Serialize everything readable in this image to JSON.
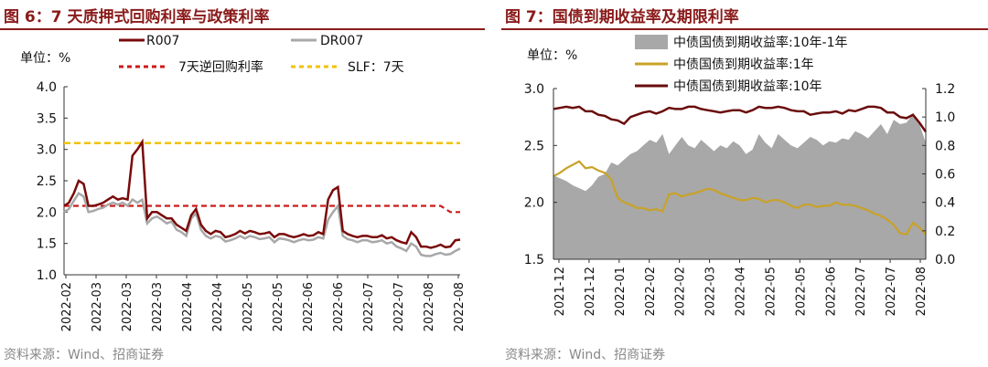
{
  "colors": {
    "title": "#8b1a1a",
    "r007": "#7a0a0a",
    "dr007": "#a8a8a8",
    "reverse_repo": "#cc1a1a",
    "slf": "#f2c200",
    "spread_area": "#a8a8a8",
    "y1": "#c9a227",
    "y10": "#6b0c0c"
  },
  "chart_data": [
    {
      "type": "line",
      "title": "图 6：7 天质押式回购利率与政策利率",
      "unit_label": "单位：%",
      "ylim": [
        1.0,
        4.0
      ],
      "yticks": [
        "4.0",
        "3.5",
        "3.0",
        "2.5",
        "2.0",
        "1.5",
        "1.0"
      ],
      "x_tick_labels": [
        "2022-02",
        "2022-03",
        "2022-03",
        "2022-03",
        "2022-04",
        "2022-04",
        "2022-05",
        "2022-05",
        "2022-06",
        "2022-06",
        "2022-07",
        "2022-07",
        "2022-08",
        "2022-08"
      ],
      "series": [
        {
          "name": "R007",
          "values": [
            2.1,
            2.15,
            2.3,
            2.5,
            2.45,
            2.1,
            2.1,
            2.12,
            2.15,
            2.2,
            2.25,
            2.2,
            2.22,
            2.2,
            2.9,
            3.0,
            3.12,
            1.9,
            2.0,
            2.0,
            1.95,
            1.9,
            1.9,
            1.8,
            1.75,
            1.7,
            1.95,
            2.05,
            1.8,
            1.7,
            1.65,
            1.7,
            1.68,
            1.6,
            1.62,
            1.65,
            1.7,
            1.66,
            1.7,
            1.68,
            1.65,
            1.66,
            1.68,
            1.6,
            1.65,
            1.65,
            1.62,
            1.6,
            1.62,
            1.65,
            1.62,
            1.63,
            1.68,
            1.65,
            2.2,
            2.35,
            2.4,
            1.7,
            1.65,
            1.62,
            1.6,
            1.62,
            1.62,
            1.6,
            1.6,
            1.63,
            1.58,
            1.6,
            1.55,
            1.52,
            1.5,
            1.68,
            1.6,
            1.45,
            1.45,
            1.43,
            1.45,
            1.48,
            1.44,
            1.45,
            1.55,
            1.56
          ]
        },
        {
          "name": "DR007",
          "values": [
            2.0,
            2.05,
            2.18,
            2.3,
            2.25,
            2.0,
            2.02,
            2.05,
            2.07,
            2.12,
            2.15,
            2.12,
            2.15,
            2.1,
            2.2,
            2.15,
            2.2,
            1.82,
            1.9,
            1.93,
            1.88,
            1.82,
            1.85,
            1.72,
            1.68,
            1.62,
            1.9,
            1.98,
            1.72,
            1.62,
            1.58,
            1.62,
            1.6,
            1.53,
            1.55,
            1.58,
            1.62,
            1.58,
            1.62,
            1.6,
            1.57,
            1.58,
            1.6,
            1.52,
            1.58,
            1.57,
            1.55,
            1.52,
            1.55,
            1.57,
            1.55,
            1.56,
            1.6,
            1.58,
            1.88,
            2.0,
            2.1,
            1.62,
            1.57,
            1.55,
            1.52,
            1.55,
            1.55,
            1.52,
            1.53,
            1.55,
            1.5,
            1.52,
            1.45,
            1.42,
            1.38,
            1.5,
            1.45,
            1.32,
            1.3,
            1.3,
            1.33,
            1.35,
            1.32,
            1.33,
            1.38,
            1.42
          ]
        },
        {
          "name": "7天逆回购利率",
          "values": [
            2.1,
            2.1,
            2.1,
            2.1,
            2.1,
            2.1,
            2.1,
            2.1,
            2.1,
            2.1,
            2.1,
            2.1,
            2.1,
            2.1,
            2.1,
            2.1,
            2.1,
            2.1,
            2.1,
            2.1,
            2.1,
            2.1,
            2.1,
            2.1,
            2.1,
            2.1,
            2.1,
            2.1,
            2.1,
            2.1,
            2.1,
            2.1,
            2.1,
            2.1,
            2.1,
            2.1,
            2.1,
            2.1,
            2.1,
            2.1,
            2.1,
            2.1,
            2.1,
            2.1,
            2.1,
            2.1,
            2.1,
            2.1,
            2.1,
            2.1,
            2.1,
            2.1,
            2.1,
            2.1,
            2.1,
            2.1,
            2.1,
            2.1,
            2.1,
            2.1,
            2.1,
            2.1,
            2.1,
            2.1,
            2.1,
            2.1,
            2.1,
            2.1,
            2.1,
            2.1,
            2.1,
            2.1,
            2.1,
            2.1,
            2.1,
            2.1,
            2.1,
            2.1,
            2.05,
            2.0,
            2.0,
            2.0
          ]
        },
        {
          "name": "SLF：7天",
          "values": [
            3.1,
            3.1
          ]
        }
      ],
      "legend": [
        "R007",
        "DR007",
        "7天逆回购利率",
        "SLF：7天"
      ],
      "source": "资料来源：Wind、招商证券"
    },
    {
      "type": "area+line",
      "title": "图 7：国债到期收益率及期限利率",
      "unit_label": "单位：%",
      "ylim_left": [
        1.5,
        3.0
      ],
      "ylim_right": [
        0.0,
        1.2
      ],
      "yticks_left": [
        "3.0",
        "2.5",
        "2.0",
        "1.5"
      ],
      "yticks_right": [
        "1.2",
        "1.0",
        "0.8",
        "0.6",
        "0.4",
        "0.2",
        "0.0"
      ],
      "x_tick_labels": [
        "2021-12",
        "2021-12",
        "2022-01",
        "2022-02",
        "2022-02",
        "2022-03",
        "2022-04",
        "2022-05",
        "2022-05",
        "2022-06",
        "2022-07",
        "2022-07",
        "2022-08"
      ],
      "series": [
        {
          "name": "中债国债到期收益率:10年-1年",
          "axis": "right",
          "values": [
            0.59,
            0.57,
            0.55,
            0.52,
            0.5,
            0.48,
            0.52,
            0.58,
            0.6,
            0.68,
            0.66,
            0.7,
            0.74,
            0.76,
            0.8,
            0.84,
            0.82,
            0.88,
            0.74,
            0.8,
            0.86,
            0.8,
            0.78,
            0.84,
            0.8,
            0.76,
            0.8,
            0.78,
            0.83,
            0.8,
            0.74,
            0.77,
            0.88,
            0.82,
            0.78,
            0.88,
            0.84,
            0.8,
            0.78,
            0.82,
            0.86,
            0.84,
            0.8,
            0.83,
            0.82,
            0.85,
            0.84,
            0.9,
            0.88,
            0.85,
            0.9,
            0.95,
            0.88,
            0.98,
            0.95,
            0.96,
            1.02,
            0.95,
            0.82
          ]
        },
        {
          "name": "中债国债到期收益率:1年",
          "axis": "left",
          "values": [
            2.23,
            2.26,
            2.3,
            2.33,
            2.36,
            2.3,
            2.31,
            2.28,
            2.26,
            2.2,
            2.04,
            2.0,
            1.98,
            1.95,
            1.95,
            1.93,
            1.94,
            1.92,
            2.07,
            2.08,
            2.05,
            2.07,
            2.08,
            2.1,
            2.12,
            2.11,
            2.08,
            2.06,
            2.04,
            2.02,
            2.02,
            2.04,
            2.03,
            2.0,
            2.02,
            2.02,
            2.0,
            1.97,
            1.95,
            1.98,
            1.98,
            1.96,
            1.97,
            1.97,
            2.0,
            1.98,
            1.98,
            1.97,
            1.95,
            1.93,
            1.9,
            1.88,
            1.85,
            1.8,
            1.73,
            1.72,
            1.82,
            1.78,
            1.72
          ]
        },
        {
          "name": "中债国债到期收益率:10年",
          "axis": "left",
          "values": [
            2.82,
            2.83,
            2.84,
            2.83,
            2.84,
            2.8,
            2.8,
            2.77,
            2.76,
            2.73,
            2.72,
            2.69,
            2.75,
            2.77,
            2.79,
            2.8,
            2.78,
            2.8,
            2.83,
            2.82,
            2.82,
            2.84,
            2.84,
            2.82,
            2.81,
            2.8,
            2.79,
            2.8,
            2.81,
            2.81,
            2.79,
            2.81,
            2.84,
            2.83,
            2.83,
            2.84,
            2.83,
            2.81,
            2.8,
            2.8,
            2.77,
            2.78,
            2.79,
            2.79,
            2.8,
            2.78,
            2.81,
            2.8,
            2.82,
            2.84,
            2.84,
            2.83,
            2.79,
            2.79,
            2.75,
            2.74,
            2.77,
            2.7,
            2.62
          ]
        }
      ],
      "legend": [
        "中债国债到期收益率:10年-1年",
        "中债国债到期收益率:1年",
        "中债国债到期收益率:10年"
      ],
      "source": "资料来源：Wind、招商证券"
    }
  ]
}
